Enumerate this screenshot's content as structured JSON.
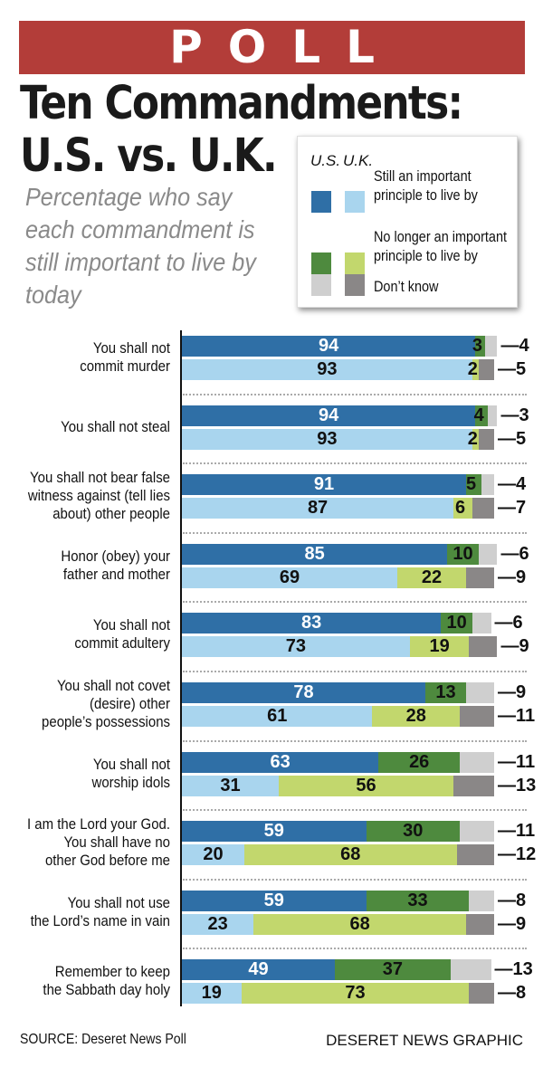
{
  "banner": "POLL",
  "title_line1": "Ten Commandments:",
  "title_line2": "U.S. vs. U.K.",
  "subtitle": "Percentage who say each commandment is still important to live by today",
  "legend": {
    "us_label": "U.S.",
    "uk_label": "U.K.",
    "items": [
      {
        "label_line1": "Still an important",
        "label_line2": "principle to live by"
      },
      {
        "label_line1": "No longer an important",
        "label_line2": "principle to live by"
      },
      {
        "label_line1": "Don’t know",
        "label_line2": ""
      }
    ]
  },
  "colors": {
    "us_important": "#2f6fa6",
    "uk_important": "#a9d5ee",
    "us_no_longer": "#4e8a3e",
    "uk_no_longer": "#c2d76d",
    "us_dont_know": "#cfcfcf",
    "uk_dont_know": "#8a8787",
    "banner": "#b33d39"
  },
  "footer": {
    "source": "SOURCE: Deseret News Poll",
    "credit": "DESERET NEWS GRAPHIC"
  },
  "chart_data": {
    "type": "bar",
    "orientation": "horizontal",
    "stacked": true,
    "grid": false,
    "legend_placement": "top-right",
    "series_order": [
      "Still an important principle to live by",
      "No longer an important principle to live by",
      "Don’t know"
    ],
    "categories": [
      {
        "label": [
          "You shall not",
          "commit murder"
        ],
        "us": [
          94,
          3,
          4
        ],
        "uk": [
          93,
          2,
          5
        ]
      },
      {
        "label": [
          "You shall not steal"
        ],
        "us": [
          94,
          4,
          3
        ],
        "uk": [
          93,
          2,
          5
        ]
      },
      {
        "label": [
          "You shall not bear false",
          "witness against (tell lies",
          "about) other people"
        ],
        "us": [
          91,
          5,
          4
        ],
        "uk": [
          87,
          6,
          7
        ]
      },
      {
        "label": [
          "Honor (obey) your",
          "father and mother"
        ],
        "us": [
          85,
          10,
          6
        ],
        "uk": [
          69,
          22,
          9
        ]
      },
      {
        "label": [
          "You shall not",
          "commit adultery"
        ],
        "us": [
          83,
          10,
          6
        ],
        "uk": [
          73,
          19,
          9
        ]
      },
      {
        "label": [
          "You shall not covet",
          "(desire) other",
          "people’s possessions"
        ],
        "us": [
          78,
          13,
          9
        ],
        "uk": [
          61,
          28,
          11
        ]
      },
      {
        "label": [
          "You shall not",
          "worship idols"
        ],
        "us": [
          63,
          26,
          11
        ],
        "uk": [
          31,
          56,
          13
        ]
      },
      {
        "label": [
          "I am the Lord your God.",
          "You shall have no",
          "other God before me"
        ],
        "us": [
          59,
          30,
          11
        ],
        "uk": [
          20,
          68,
          12
        ]
      },
      {
        "label": [
          "You shall not use",
          "the Lord’s name in  vain"
        ],
        "us": [
          59,
          33,
          8
        ],
        "uk": [
          23,
          68,
          9
        ]
      },
      {
        "label": [
          "Remember to keep",
          "the Sabbath day holy"
        ],
        "us": [
          49,
          37,
          13
        ],
        "uk": [
          19,
          73,
          8
        ]
      }
    ]
  }
}
